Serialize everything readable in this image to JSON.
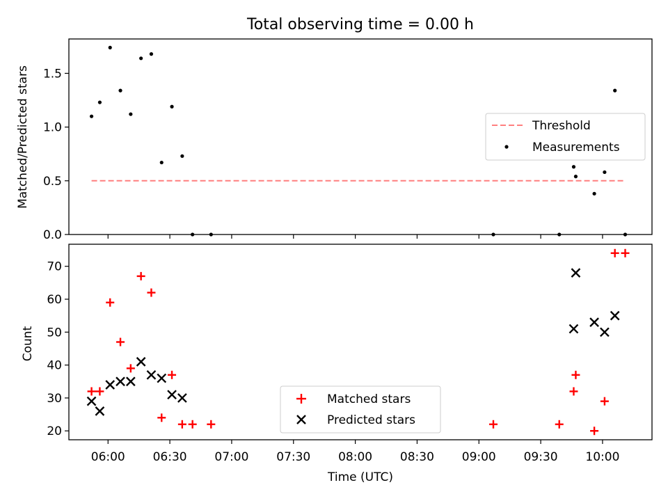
{
  "chart_data": [
    {
      "type": "scatter",
      "title": "Total observing time = 0.00 h",
      "xlabel": "",
      "ylabel": "Matched/Predicted stars",
      "xlim": [
        "05:41",
        "10:24"
      ],
      "ylim": [
        0,
        1.82
      ],
      "yticks": [
        0.0,
        0.5,
        1.0,
        1.5
      ],
      "ytick_labels": [
        "0.0",
        "0.5",
        "1.0",
        "1.5"
      ],
      "xticks": [
        "06:00",
        "06:30",
        "07:00",
        "07:30",
        "08:00",
        "08:30",
        "09:00",
        "09:30",
        "10:00"
      ],
      "grid": false,
      "legend": {
        "placement": "center-right",
        "entries": [
          "Threshold",
          "Measurements"
        ]
      },
      "series": [
        {
          "name": "Threshold",
          "kind": "dashed-line",
          "color": "#ff7f7f",
          "x": [
            "05:52",
            "10:11"
          ],
          "y": [
            0.5,
            0.5
          ]
        },
        {
          "name": "Measurements",
          "kind": "dot",
          "color": "#000000",
          "x": [
            "05:52",
            "05:56",
            "06:01",
            "06:06",
            "06:11",
            "06:16",
            "06:21",
            "06:26",
            "06:31",
            "06:36",
            "06:41",
            "06:50",
            "09:07",
            "09:39",
            "09:46",
            "09:47",
            "09:56",
            "10:01",
            "10:06",
            "10:11"
          ],
          "y": [
            1.1,
            1.23,
            1.74,
            1.34,
            1.12,
            1.64,
            1.68,
            0.67,
            1.19,
            0.73,
            0.0,
            0.0,
            0.0,
            0.0,
            0.63,
            0.54,
            0.38,
            0.58,
            1.34,
            0.0
          ]
        }
      ]
    },
    {
      "type": "scatter",
      "title": "",
      "xlabel": "Time (UTC)",
      "ylabel": "Count",
      "xlim": [
        "05:41",
        "10:24"
      ],
      "ylim": [
        17.3,
        76.7
      ],
      "yticks": [
        20,
        30,
        40,
        50,
        60,
        70
      ],
      "ytick_labels": [
        "20",
        "30",
        "40",
        "50",
        "60",
        "70"
      ],
      "xticks": [
        "06:00",
        "06:30",
        "07:00",
        "07:30",
        "08:00",
        "08:30",
        "09:00",
        "09:30",
        "10:00"
      ],
      "grid": false,
      "legend": {
        "placement": "bottom-center",
        "entries": [
          "Matched stars",
          "Predicted stars"
        ]
      },
      "series": [
        {
          "name": "Matched stars",
          "marker": "plus",
          "color": "#ff0000",
          "x": [
            "05:52",
            "05:56",
            "06:01",
            "06:06",
            "06:11",
            "06:16",
            "06:21",
            "06:26",
            "06:31",
            "06:36",
            "06:41",
            "06:50",
            "09:07",
            "09:39",
            "09:46",
            "09:47",
            "09:56",
            "10:01",
            "10:06",
            "10:11"
          ],
          "y": [
            32,
            32,
            59,
            47,
            39,
            67,
            62,
            24,
            37,
            22,
            22,
            22,
            22,
            22,
            32,
            37,
            20,
            29,
            74,
            74
          ]
        },
        {
          "name": "Predicted stars",
          "marker": "x",
          "color": "#000000",
          "x": [
            "05:52",
            "05:56",
            "06:01",
            "06:06",
            "06:11",
            "06:16",
            "06:21",
            "06:26",
            "06:31",
            "06:36",
            "09:46",
            "09:47",
            "09:56",
            "10:01",
            "10:06"
          ],
          "y": [
            29,
            26,
            34,
            35,
            35,
            41,
            37,
            36,
            31,
            30,
            51,
            68,
            53,
            50,
            55
          ]
        }
      ]
    }
  ]
}
